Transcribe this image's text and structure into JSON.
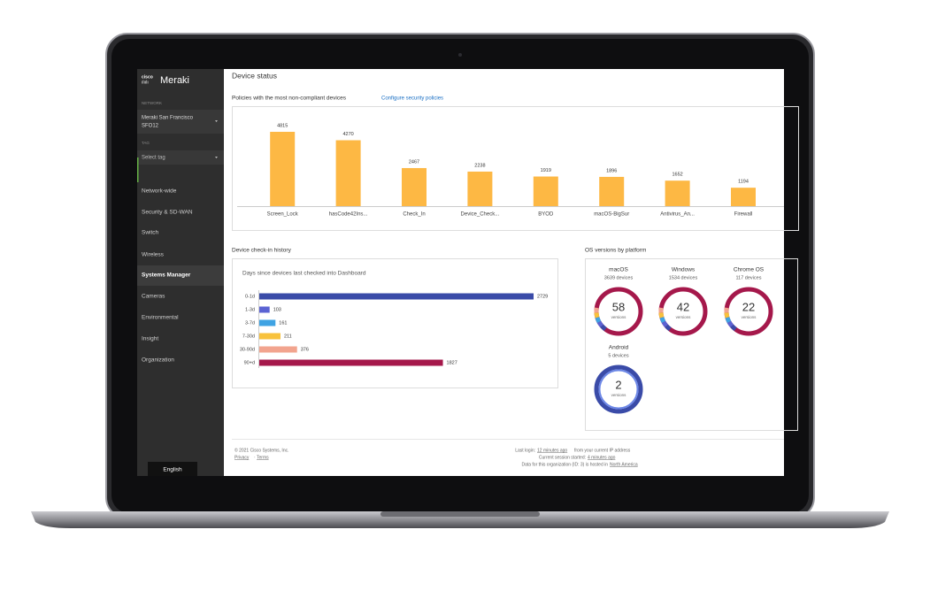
{
  "sidebar": {
    "brand": "cisco",
    "logo": "Meraki",
    "network_label": "NETWORK",
    "network": [
      "Meraki San Francisco",
      "SFO12"
    ],
    "tag_label": "TAG",
    "tag": "Select tag",
    "menu": [
      "Network-wide",
      "Security & SD-WAN",
      "Switch",
      "Wireless",
      "Systems Manager",
      "Cameras",
      "Environmental",
      "Insight",
      "Organization"
    ],
    "active_menu": 4,
    "language": "English"
  },
  "header": {
    "title": "Device status"
  },
  "policies": {
    "title": "Policies with the most non-compliant devices",
    "link": "Configure security policies",
    "chart": {
      "type": "bar",
      "categories": [
        "Screen_Lock",
        "hasCode42Ins...",
        "Check_In",
        "Device_Check...",
        "BYOD",
        "macOS-BigSur",
        "Antivirus_An...",
        "Firewall"
      ],
      "values": [
        4815,
        4270,
        2467,
        2238,
        1919,
        1896,
        1652,
        1194
      ],
      "color": "#fdb844"
    }
  },
  "checkin": {
    "title": "Device check-in history",
    "chart": {
      "type": "hbar",
      "subtitle": "Days since devices last checked into Dashboard",
      "categories": [
        "0-1d",
        "1-3d",
        "3-7d",
        "7-30d",
        "30-90d",
        "90+d"
      ],
      "values": [
        2729,
        103,
        161,
        211,
        376,
        1827
      ],
      "colors": [
        "#3a4ba8",
        "#5b63d3",
        "#3fa3e3",
        "#f8c23c",
        "#f2a48e",
        "#a5184b"
      ]
    }
  },
  "os_versions": {
    "title": "OS versions by platform",
    "platforms": [
      {
        "name": "macOS",
        "devices": "3639 devices",
        "versions": 58,
        "versions_label": "versions",
        "color": "#a5184b"
      },
      {
        "name": "Windows",
        "devices": "1534 devices",
        "versions": 42,
        "versions_label": "versions",
        "color": "#a5184b"
      },
      {
        "name": "Chrome OS",
        "devices": "117 devices",
        "versions": 22,
        "versions_label": "versions",
        "color": "#a5184b"
      },
      {
        "name": "Android",
        "devices": "5 devices",
        "versions": 2,
        "versions_label": "versions",
        "color": "#3a4ba8"
      }
    ]
  },
  "footer": {
    "copyright": "© 2021 Cisco Systems, Inc.",
    "privacy": "Privacy",
    "separator": "·",
    "terms": "Terms",
    "last_login": [
      "Last login:",
      "12 minutes ago",
      "from your current IP address"
    ],
    "session": [
      "Current session started:",
      "4 minutes ago"
    ],
    "hosting": [
      "Data for this organization (ID: 3) is hosted in",
      "North America"
    ]
  }
}
